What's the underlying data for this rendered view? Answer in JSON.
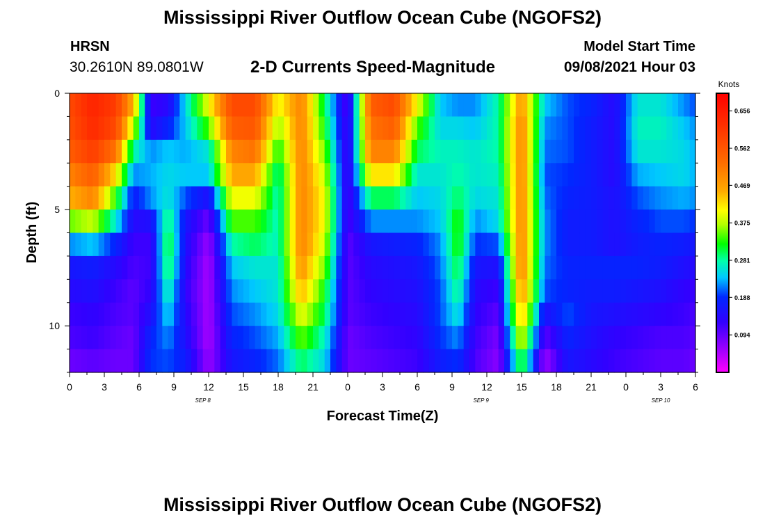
{
  "page": {
    "title_top": "Mississippi River Outflow Ocean Cube (NGOFS2)",
    "title_bottom": "Mississippi River Outflow Ocean Cube (NGOFS2)",
    "station": "HRSN",
    "coordinates": "30.2610N  89.0801W",
    "model_start_label": "Model Start Time",
    "model_start_value": "09/08/2021 Hour 03"
  },
  "chart_data": {
    "type": "heatmap",
    "title": "2-D Currents Speed-Magnitude",
    "xlabel": "Forecast Time(Z)",
    "ylabel": "Depth (ft)",
    "x_range_hours": [
      0,
      54
    ],
    "x_tick_labels": [
      "0",
      "3",
      "6",
      "9",
      "12",
      "15",
      "18",
      "21",
      "0",
      "3",
      "6",
      "9",
      "12",
      "15",
      "18",
      "21",
      "0",
      "3",
      "6"
    ],
    "date_labels": [
      {
        "text": "SEP 8",
        "hour": 11.5
      },
      {
        "text": "SEP 9",
        "hour": 35.5
      },
      {
        "text": "SEP 10",
        "hour": 51
      }
    ],
    "y_range": [
      0,
      12
    ],
    "y_ticks": [
      0,
      5,
      10
    ],
    "colorbar": {
      "unit_label": "Knots",
      "range": [
        0,
        0.7
      ],
      "ticks": [
        0.094,
        0.188,
        0.281,
        0.375,
        0.469,
        0.562,
        0.656
      ],
      "tick_labels": [
        "0.094",
        "0.188",
        "0.281",
        "0.375",
        "0.469",
        "0.562",
        "0.656"
      ]
    },
    "depth_levels_ft": [
      0.5,
      1.5,
      2.5,
      3.5,
      4.5,
      5.5,
      6.5,
      7.5,
      8.5,
      9.5,
      10.5,
      11.5
    ],
    "profiles": [
      {
        "hour": 0,
        "values": [
          0.58,
          0.57,
          0.55,
          0.5,
          0.45,
          0.35,
          0.22,
          0.16,
          0.14,
          0.12,
          0.11,
          0.09
        ]
      },
      {
        "hour": 2,
        "values": [
          0.64,
          0.63,
          0.6,
          0.55,
          0.5,
          0.38,
          0.24,
          0.17,
          0.15,
          0.13,
          0.12,
          0.1
        ]
      },
      {
        "hour": 4,
        "values": [
          0.6,
          0.58,
          0.52,
          0.42,
          0.33,
          0.26,
          0.18,
          0.14,
          0.12,
          0.11,
          0.1,
          0.09
        ]
      },
      {
        "hour": 5.5,
        "values": [
          0.45,
          0.38,
          0.28,
          0.22,
          0.17,
          0.14,
          0.12,
          0.11,
          0.1,
          0.1,
          0.09,
          0.09
        ]
      },
      {
        "hour": 7,
        "values": [
          0.12,
          0.14,
          0.22,
          0.23,
          0.22,
          0.15,
          0.12,
          0.12,
          0.13,
          0.15,
          0.18,
          0.19
        ]
      },
      {
        "hour": 8.5,
        "values": [
          0.14,
          0.18,
          0.24,
          0.25,
          0.26,
          0.3,
          0.32,
          0.31,
          0.28,
          0.25,
          0.22,
          0.2
        ]
      },
      {
        "hour": 10,
        "values": [
          0.25,
          0.24,
          0.23,
          0.24,
          0.2,
          0.16,
          0.15,
          0.14,
          0.13,
          0.14,
          0.15,
          0.17
        ]
      },
      {
        "hour": 12,
        "values": [
          0.4,
          0.34,
          0.26,
          0.24,
          0.15,
          0.09,
          0.06,
          0.05,
          0.05,
          0.05,
          0.05,
          0.06
        ]
      },
      {
        "hour": 14,
        "values": [
          0.58,
          0.55,
          0.5,
          0.46,
          0.4,
          0.34,
          0.28,
          0.24,
          0.22,
          0.2,
          0.18,
          0.16
        ]
      },
      {
        "hour": 16,
        "values": [
          0.58,
          0.56,
          0.52,
          0.46,
          0.4,
          0.34,
          0.3,
          0.26,
          0.24,
          0.22,
          0.2,
          0.18
        ]
      },
      {
        "hour": 18,
        "values": [
          0.4,
          0.36,
          0.32,
          0.28,
          0.27,
          0.27,
          0.27,
          0.26,
          0.26,
          0.25,
          0.23,
          0.21
        ]
      },
      {
        "hour": 20,
        "values": [
          0.5,
          0.5,
          0.5,
          0.5,
          0.5,
          0.5,
          0.5,
          0.48,
          0.45,
          0.4,
          0.35,
          0.3
        ]
      },
      {
        "hour": 22,
        "values": [
          0.3,
          0.32,
          0.35,
          0.38,
          0.4,
          0.4,
          0.38,
          0.35,
          0.32,
          0.3,
          0.27,
          0.25
        ]
      },
      {
        "hour": 24,
        "values": [
          0.1,
          0.11,
          0.11,
          0.11,
          0.11,
          0.11,
          0.1,
          0.1,
          0.1,
          0.1,
          0.09,
          0.09
        ]
      },
      {
        "hour": 26,
        "values": [
          0.55,
          0.52,
          0.5,
          0.42,
          0.3,
          0.22,
          0.16,
          0.14,
          0.13,
          0.12,
          0.11,
          0.1
        ]
      },
      {
        "hour": 28,
        "values": [
          0.58,
          0.55,
          0.5,
          0.42,
          0.3,
          0.22,
          0.17,
          0.15,
          0.14,
          0.13,
          0.12,
          0.11
        ]
      },
      {
        "hour": 30,
        "values": [
          0.4,
          0.34,
          0.3,
          0.26,
          0.24,
          0.22,
          0.18,
          0.16,
          0.15,
          0.14,
          0.13,
          0.12
        ]
      },
      {
        "hour": 32,
        "values": [
          0.24,
          0.25,
          0.27,
          0.26,
          0.25,
          0.24,
          0.22,
          0.21,
          0.2,
          0.2,
          0.19,
          0.17
        ]
      },
      {
        "hour": 33.5,
        "values": [
          0.22,
          0.25,
          0.27,
          0.28,
          0.3,
          0.33,
          0.33,
          0.31,
          0.29,
          0.26,
          0.22,
          0.19
        ]
      },
      {
        "hour": 35,
        "values": [
          0.22,
          0.24,
          0.26,
          0.26,
          0.25,
          0.22,
          0.19,
          0.16,
          0.14,
          0.13,
          0.12,
          0.11
        ]
      },
      {
        "hour": 37,
        "values": [
          0.28,
          0.28,
          0.28,
          0.27,
          0.26,
          0.25,
          0.2,
          0.15,
          0.12,
          0.1,
          0.08,
          0.07
        ]
      },
      {
        "hour": 39,
        "values": [
          0.48,
          0.5,
          0.5,
          0.5,
          0.5,
          0.5,
          0.5,
          0.5,
          0.48,
          0.45,
          0.4,
          0.33
        ]
      },
      {
        "hour": 41,
        "values": [
          0.24,
          0.22,
          0.21,
          0.2,
          0.21,
          0.22,
          0.22,
          0.21,
          0.2,
          0.15,
          0.1,
          0.06
        ]
      },
      {
        "hour": 43,
        "values": [
          0.2,
          0.2,
          0.2,
          0.19,
          0.18,
          0.17,
          0.17,
          0.18,
          0.18,
          0.2,
          0.18,
          0.16
        ]
      },
      {
        "hour": 45,
        "values": [
          0.18,
          0.17,
          0.17,
          0.17,
          0.17,
          0.17,
          0.17,
          0.18,
          0.17,
          0.16,
          0.15,
          0.14
        ]
      },
      {
        "hour": 47,
        "values": [
          0.14,
          0.14,
          0.14,
          0.14,
          0.15,
          0.15,
          0.15,
          0.18,
          0.17,
          0.15,
          0.13,
          0.12
        ]
      },
      {
        "hour": 49,
        "values": [
          0.26,
          0.27,
          0.26,
          0.23,
          0.2,
          0.18,
          0.17,
          0.18,
          0.16,
          0.14,
          0.12,
          0.11
        ]
      },
      {
        "hour": 51,
        "values": [
          0.26,
          0.27,
          0.26,
          0.24,
          0.22,
          0.2,
          0.18,
          0.17,
          0.15,
          0.13,
          0.11,
          0.1
        ]
      },
      {
        "hour": 53,
        "values": [
          0.22,
          0.24,
          0.25,
          0.25,
          0.23,
          0.2,
          0.17,
          0.15,
          0.13,
          0.12,
          0.11,
          0.1
        ]
      },
      {
        "hour": 54,
        "values": [
          0.2,
          0.22,
          0.23,
          0.23,
          0.22,
          0.19,
          0.16,
          0.14,
          0.12,
          0.11,
          0.1,
          0.09
        ]
      }
    ]
  }
}
